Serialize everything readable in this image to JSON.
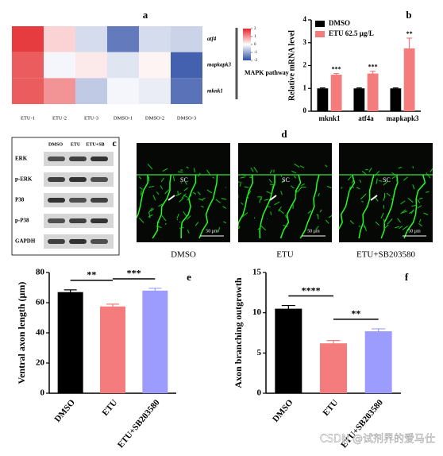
{
  "chart_data": [
    {
      "type": "heatmap",
      "label": "a",
      "rows": [
        "atf4",
        "mapkapk3",
        "mknk1"
      ],
      "columns": [
        "ETU-1",
        "ETU-2",
        "ETU-3",
        "DMSO-1",
        "DMSO-2",
        "DMSO-3"
      ],
      "values": [
        [
          1.8,
          0.4,
          -0.4,
          -1.5,
          -0.4,
          -0.5
        ],
        [
          1.5,
          -0.1,
          0.2,
          -0.3,
          0.1,
          -1.8
        ],
        [
          1.5,
          1.0,
          -0.6,
          -0.1,
          -0.2,
          -1.6
        ]
      ],
      "zlim": [
        -2,
        2
      ],
      "zticks": [
        2,
        1,
        0,
        -1,
        -2
      ],
      "colors": [
        "#2f4fa6",
        "#ffffff",
        "#e4262a"
      ],
      "group_label": "MAPK pathway"
    },
    {
      "type": "bar",
      "label": "b",
      "ylabel": "Relative mRNA level",
      "categories": [
        "mknk1",
        "atf4a",
        "mapkapk3"
      ],
      "series": [
        {
          "name": "DMSO",
          "color": "#000000",
          "values": [
            1,
            1,
            1
          ],
          "errors": [
            0.02,
            0.02,
            0.02
          ]
        },
        {
          "name": "ETU 62.5 μg/L",
          "color": "#f47c7c",
          "values": [
            1.6,
            1.65,
            2.75
          ],
          "errors": [
            0.05,
            0.1,
            0.45
          ]
        }
      ],
      "annotations": [
        "***",
        "***",
        "**"
      ],
      "ylim": [
        0,
        4
      ],
      "yticks": [
        0,
        1,
        2,
        3,
        4
      ]
    },
    {
      "type": "bar",
      "label": "e",
      "ylabel": "Ventral axon length (μm)",
      "categories": [
        "DMSO",
        "ETU",
        "ETU+SB203580"
      ],
      "series": [
        {
          "colors": [
            "#000000",
            "#f47c7c",
            "#9c9cff"
          ],
          "values": [
            67,
            57.5,
            68
          ],
          "errors": [
            1.5,
            1.5,
            1.5
          ]
        }
      ],
      "annotations": [
        "**",
        "***"
      ],
      "ylim": [
        0,
        80
      ],
      "yticks": [
        0,
        20,
        40,
        60,
        80
      ]
    },
    {
      "type": "bar",
      "label": "f",
      "ylabel": "Axon branching outgrowth",
      "categories": [
        "DMSO",
        "ETU",
        "ETU+SB203580"
      ],
      "series": [
        {
          "colors": [
            "#000000",
            "#f47c7c",
            "#9c9cff"
          ],
          "values": [
            10.5,
            6.2,
            7.7
          ],
          "errors": [
            0.4,
            0.35,
            0.3
          ]
        }
      ],
      "annotations": [
        "****",
        "**"
      ],
      "ylim": [
        0,
        15
      ],
      "yticks": [
        0,
        5,
        10,
        15
      ]
    }
  ],
  "blot": {
    "label": "c",
    "columns": [
      "DMSO",
      "ETU",
      "ETU+SB"
    ],
    "rows": [
      "ERK",
      "p-ERK",
      "P38",
      "p-P38",
      "GAPDH"
    ]
  },
  "micrographs": {
    "label": "d",
    "panels": [
      {
        "title": "DMSO",
        "marker": "SC",
        "scale": "50 μm"
      },
      {
        "title": "ETU",
        "marker": "SC",
        "scale": "50 μm"
      },
      {
        "title": "ETU+SB203580",
        "marker": "SC",
        "scale": "50 μm"
      }
    ]
  },
  "watermark": "CSDN @试剂界的爱马仕"
}
